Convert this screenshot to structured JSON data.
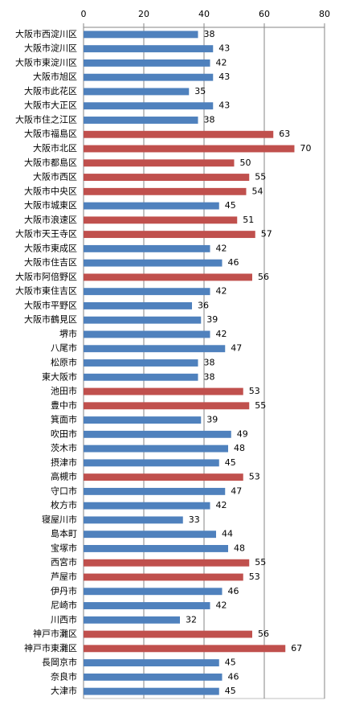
{
  "chart_data": {
    "type": "bar",
    "orientation": "horizontal",
    "categories": [
      "大阪市西淀川区",
      "大阪市淀川区",
      "大阪市東淀川区",
      "大阪市旭区",
      "大阪市此花区",
      "大阪市大正区",
      "大阪市住之江区",
      "大阪市福島区",
      "大阪市北区",
      "大阪市都島区",
      "大阪市西区",
      "大阪市中央区",
      "大阪市城東区",
      "大阪市浪速区",
      "大阪市天王寺区",
      "大阪市東成区",
      "大阪市住吉区",
      "大阪市阿倍野区",
      "大阪市東住吉区",
      "大阪市平野区",
      "大阪市鶴見区",
      "堺市",
      "八尾市",
      "松原市",
      "東大阪市",
      "池田市",
      "豊中市",
      "箕面市",
      "吹田市",
      "茨木市",
      "摂津市",
      "高槻市",
      "守口市",
      "枚方市",
      "寝屋川市",
      "島本町",
      "宝塚市",
      "西宮市",
      "芦屋市",
      "伊丹市",
      "尼崎市",
      "川西市",
      "神戸市灘区",
      "神戸市東灘区",
      "長岡京市",
      "奈良市",
      "大津市"
    ],
    "values": [
      38,
      43,
      42,
      43,
      35,
      43,
      38,
      63,
      70,
      50,
      55,
      54,
      45,
      51,
      57,
      42,
      46,
      56,
      42,
      36,
      39,
      42,
      47,
      38,
      38,
      53,
      55,
      39,
      49,
      48,
      45,
      53,
      47,
      42,
      33,
      44,
      48,
      55,
      53,
      46,
      42,
      32,
      56,
      67,
      45,
      46,
      45
    ],
    "colors": [
      "#4f81bd",
      "#4f81bd",
      "#4f81bd",
      "#4f81bd",
      "#4f81bd",
      "#4f81bd",
      "#4f81bd",
      "#c0504d",
      "#c0504d",
      "#c0504d",
      "#c0504d",
      "#c0504d",
      "#4f81bd",
      "#c0504d",
      "#c0504d",
      "#4f81bd",
      "#4f81bd",
      "#c0504d",
      "#4f81bd",
      "#4f81bd",
      "#4f81bd",
      "#4f81bd",
      "#4f81bd",
      "#4f81bd",
      "#4f81bd",
      "#c0504d",
      "#c0504d",
      "#4f81bd",
      "#4f81bd",
      "#4f81bd",
      "#4f81bd",
      "#c0504d",
      "#4f81bd",
      "#4f81bd",
      "#4f81bd",
      "#4f81bd",
      "#4f81bd",
      "#c0504d",
      "#c0504d",
      "#4f81bd",
      "#4f81bd",
      "#4f81bd",
      "#c0504d",
      "#c0504d",
      "#4f81bd",
      "#4f81bd",
      "#4f81bd"
    ],
    "xlim": [
      0,
      80
    ],
    "xticks": [
      0,
      20,
      40,
      60,
      80
    ],
    "grid": true,
    "data_labels": true
  }
}
